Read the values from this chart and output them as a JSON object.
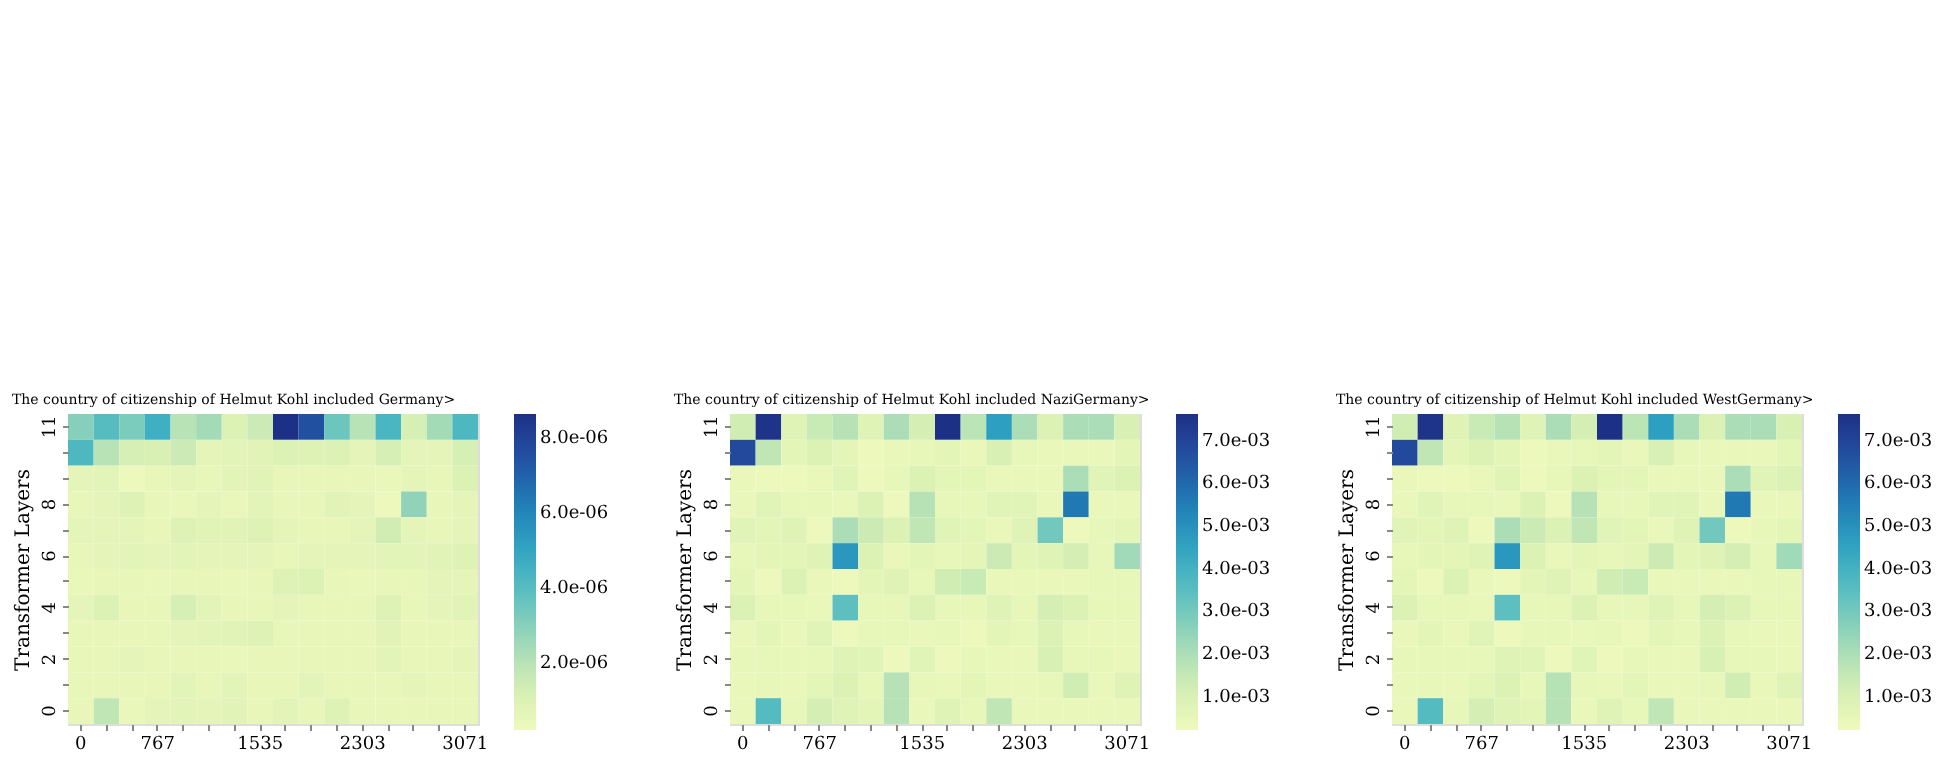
{
  "chart_data": [
    {
      "type": "heatmap",
      "title": "The country of citizenship of Helmut Kohl included Germany>",
      "ylabel": "Transformer Layers",
      "categories": [
        "0",
        null,
        null,
        "767",
        null,
        null,
        null,
        "1535",
        null,
        null,
        null,
        "2303",
        null,
        null,
        null,
        "3071"
      ],
      "y_categories": [
        "11",
        null,
        null,
        "8",
        null,
        "6",
        null,
        "4",
        null,
        "2",
        null,
        "0"
      ],
      "cells": [
        [
          3e-06,
          4e-06,
          3.2e-06,
          4.6e-06,
          2e-06,
          2.4e-06,
          1e-06,
          1.5e-06,
          8.6e-06,
          7.5e-06,
          3.5e-06,
          2e-06,
          4.3e-06,
          1.2e-06,
          2.4e-06,
          4.2e-06
        ],
        [
          4.2e-06,
          2e-06,
          1.2e-06,
          1.1e-06,
          1.5e-06,
          6e-07,
          7e-07,
          8e-07,
          1e-06,
          9e-07,
          1e-06,
          6e-07,
          1.2e-06,
          6e-07,
          6e-07,
          1.2e-06
        ],
        [
          6e-07,
          7e-07,
          3e-07,
          5e-07,
          6e-07,
          5e-07,
          7e-07,
          8e-07,
          5e-07,
          5e-07,
          5e-07,
          5e-07,
          4e-07,
          6e-07,
          5e-07,
          1e-06
        ],
        [
          5e-07,
          6e-07,
          9e-07,
          5e-07,
          4e-07,
          6e-07,
          4e-07,
          7e-07,
          5e-07,
          5e-07,
          8e-07,
          6e-07,
          3e-07,
          2.8e-06,
          5e-07,
          6e-07
        ],
        [
          6e-07,
          6e-07,
          6e-07,
          5e-07,
          9e-07,
          8e-07,
          8e-07,
          9e-07,
          6e-07,
          5e-07,
          5e-07,
          6e-07,
          1.3e-06,
          6e-07,
          5e-07,
          6e-07
        ],
        [
          5e-07,
          6e-07,
          7e-07,
          6e-07,
          7e-07,
          6e-07,
          6e-07,
          6e-07,
          5e-07,
          6e-07,
          6e-07,
          6e-07,
          7e-07,
          7e-07,
          8e-07,
          9e-07
        ],
        [
          4e-07,
          5e-07,
          5e-07,
          4e-07,
          5e-07,
          5e-07,
          4e-07,
          5e-07,
          9e-07,
          1e-06,
          5e-07,
          4e-07,
          5e-07,
          5e-07,
          6e-07,
          6e-07
        ],
        [
          6e-07,
          1e-06,
          5e-07,
          5e-07,
          1.2e-06,
          7e-07,
          5e-07,
          5e-07,
          6e-07,
          5e-07,
          5e-07,
          5e-07,
          9e-07,
          5e-07,
          6e-07,
          8e-07
        ],
        [
          5e-07,
          5e-07,
          5e-07,
          5e-07,
          6e-07,
          7e-07,
          8e-07,
          9e-07,
          5e-07,
          5e-07,
          5e-07,
          5e-07,
          8e-07,
          5e-07,
          5e-07,
          5e-07
        ],
        [
          5e-07,
          5e-07,
          6e-07,
          5e-07,
          5e-07,
          5e-07,
          4e-07,
          5e-07,
          5e-07,
          5e-07,
          5e-07,
          5e-07,
          7e-07,
          5e-07,
          5e-07,
          6e-07
        ],
        [
          5e-07,
          5e-07,
          5e-07,
          5e-07,
          7e-07,
          5e-07,
          7e-07,
          5e-07,
          5e-07,
          7e-07,
          5e-07,
          5e-07,
          5e-07,
          6e-07,
          5e-07,
          5e-07
        ],
        [
          5e-07,
          1.8e-06,
          4e-07,
          6e-07,
          7e-07,
          6e-07,
          8e-07,
          5e-07,
          7e-07,
          5e-07,
          9e-07,
          5e-07,
          5e-07,
          5e-07,
          5e-07,
          5e-07
        ]
      ],
      "clim": [
        2e-07,
        8.6e-06
      ],
      "cticks": [
        {
          "value": 2e-06,
          "label": "2.0e-06"
        },
        {
          "value": 4e-06,
          "label": "4.0e-06"
        },
        {
          "value": 6e-06,
          "label": "6.0e-06"
        },
        {
          "value": 8e-06,
          "label": "8.0e-06"
        }
      ]
    },
    {
      "type": "heatmap",
      "title": "The country of citizenship of Helmut Kohl included NaziGermany>",
      "ylabel": "Transformer Layers",
      "categories": [
        "0",
        null,
        null,
        "767",
        null,
        null,
        null,
        "1535",
        null,
        null,
        null,
        "2303",
        null,
        null,
        null,
        "3071"
      ],
      "y_categories": [
        "11",
        null,
        null,
        "8",
        null,
        "6",
        null,
        "4",
        null,
        "2",
        null,
        "0"
      ],
      "cells": [
        [
          0.0012,
          0.0075,
          0.0008,
          0.0014,
          0.0018,
          0.0008,
          0.002,
          0.0011,
          0.0076,
          0.0017,
          0.0046,
          0.002,
          0.0009,
          0.002,
          0.002,
          0.001
        ],
        [
          0.0068,
          0.0016,
          0.0006,
          0.0009,
          0.0006,
          0.0003,
          0.0004,
          0.0005,
          0.0006,
          0.0004,
          0.001,
          0.0005,
          0.0004,
          0.0004,
          0.0004,
          0.0006
        ],
        [
          0.0004,
          0.0003,
          0.0003,
          0.0004,
          0.0007,
          0.0003,
          0.0005,
          0.0009,
          0.0006,
          0.0006,
          0.0004,
          0.0004,
          0.0004,
          0.002,
          0.0007,
          0.0009
        ],
        [
          0.0004,
          0.0007,
          0.0005,
          0.0005,
          0.0004,
          0.0009,
          0.0003,
          0.0018,
          0.0005,
          0.0005,
          0.0007,
          0.0007,
          0.0004,
          0.0056,
          0.0004,
          0.0004
        ],
        [
          0.0007,
          0.0006,
          0.0008,
          0.0003,
          0.002,
          0.0013,
          0.0009,
          0.0016,
          0.0007,
          0.0006,
          0.0004,
          0.0008,
          0.003,
          0.0003,
          0.0005,
          0.0006
        ],
        [
          0.0005,
          0.0006,
          0.0006,
          0.0008,
          0.0048,
          0.0009,
          0.0004,
          0.0006,
          0.0005,
          0.0006,
          0.0013,
          0.0006,
          0.0008,
          0.0011,
          0.0005,
          0.0022
        ],
        [
          0.0006,
          0.0003,
          0.0009,
          0.0004,
          0.0003,
          0.0006,
          0.0008,
          0.0005,
          0.0012,
          0.0014,
          0.0004,
          0.0004,
          0.0004,
          0.0004,
          0.0005,
          0.0005
        ],
        [
          0.0009,
          0.0005,
          0.0005,
          0.0004,
          0.0034,
          0.0005,
          0.0005,
          0.0009,
          0.0005,
          0.0005,
          0.0008,
          0.0005,
          0.0011,
          0.0009,
          0.0005,
          0.0005
        ],
        [
          0.0004,
          0.0006,
          0.0004,
          0.0007,
          0.0003,
          0.0005,
          0.0005,
          0.0004,
          0.0005,
          0.0003,
          0.0006,
          0.0005,
          0.0009,
          0.0005,
          0.0004,
          0.0004
        ],
        [
          0.0005,
          0.0005,
          0.0005,
          0.0005,
          0.0008,
          0.0007,
          0.0003,
          0.0007,
          0.0003,
          0.0005,
          0.0004,
          0.0004,
          0.001,
          0.0005,
          0.0005,
          0.0004
        ],
        [
          0.0004,
          0.0005,
          0.0004,
          0.0006,
          0.0009,
          0.0005,
          0.0018,
          0.0005,
          0.0004,
          0.0006,
          0.0004,
          0.0004,
          0.0005,
          0.0012,
          0.0004,
          0.0008
        ],
        [
          0.0004,
          0.0036,
          0.0005,
          0.0011,
          0.0008,
          0.0006,
          0.0018,
          0.0004,
          0.0008,
          0.0005,
          0.0016,
          0.0004,
          0.0004,
          0.0004,
          0.0004,
          0.0004
        ]
      ],
      "clim": [
        0.0002,
        0.0076
      ],
      "cticks": [
        {
          "value": 0.001,
          "label": "1.0e-03"
        },
        {
          "value": 0.002,
          "label": "2.0e-03"
        },
        {
          "value": 0.003,
          "label": "3.0e-03"
        },
        {
          "value": 0.004,
          "label": "4.0e-03"
        },
        {
          "value": 0.005,
          "label": "5.0e-03"
        },
        {
          "value": 0.006,
          "label": "6.0e-03"
        },
        {
          "value": 0.007,
          "label": "7.0e-03"
        }
      ]
    },
    {
      "type": "heatmap",
      "title": "The country of citizenship of Helmut Kohl included WestGermany>",
      "ylabel": "Transformer Layers",
      "categories": [
        "0",
        null,
        null,
        "767",
        null,
        null,
        null,
        "1535",
        null,
        null,
        null,
        "2303",
        null,
        null,
        null,
        "3071"
      ],
      "y_categories": [
        "11",
        null,
        null,
        "8",
        null,
        "6",
        null,
        "4",
        null,
        "2",
        null,
        "0"
      ],
      "cells": [
        [
          0.0012,
          0.0075,
          0.0008,
          0.0014,
          0.0018,
          0.0008,
          0.002,
          0.0011,
          0.0076,
          0.0017,
          0.0046,
          0.002,
          0.0009,
          0.002,
          0.002,
          0.001
        ],
        [
          0.0068,
          0.0016,
          0.0006,
          0.0009,
          0.0006,
          0.0003,
          0.0004,
          0.0005,
          0.0006,
          0.0004,
          0.001,
          0.0005,
          0.0004,
          0.0004,
          0.0004,
          0.0006
        ],
        [
          0.0004,
          0.0003,
          0.0003,
          0.0004,
          0.0007,
          0.0003,
          0.0005,
          0.0009,
          0.0006,
          0.0006,
          0.0004,
          0.0004,
          0.0004,
          0.002,
          0.0007,
          0.0009
        ],
        [
          0.0004,
          0.0007,
          0.0005,
          0.0005,
          0.0004,
          0.0009,
          0.0003,
          0.0018,
          0.0005,
          0.0005,
          0.0007,
          0.0007,
          0.0004,
          0.0056,
          0.0004,
          0.0004
        ],
        [
          0.0007,
          0.0006,
          0.0008,
          0.0003,
          0.002,
          0.0013,
          0.0009,
          0.0016,
          0.0007,
          0.0006,
          0.0004,
          0.0008,
          0.003,
          0.0003,
          0.0005,
          0.0006
        ],
        [
          0.0005,
          0.0006,
          0.0006,
          0.0008,
          0.0048,
          0.0009,
          0.0004,
          0.0006,
          0.0005,
          0.0006,
          0.0013,
          0.0006,
          0.0008,
          0.0011,
          0.0005,
          0.0022
        ],
        [
          0.0006,
          0.0003,
          0.0009,
          0.0004,
          0.0003,
          0.0006,
          0.0008,
          0.0005,
          0.0012,
          0.0014,
          0.0004,
          0.0004,
          0.0004,
          0.0004,
          0.0005,
          0.0005
        ],
        [
          0.0009,
          0.0005,
          0.0005,
          0.0004,
          0.0034,
          0.0005,
          0.0005,
          0.0009,
          0.0005,
          0.0005,
          0.0008,
          0.0005,
          0.0011,
          0.0009,
          0.0005,
          0.0005
        ],
        [
          0.0004,
          0.0006,
          0.0004,
          0.0007,
          0.0003,
          0.0005,
          0.0005,
          0.0004,
          0.0005,
          0.0003,
          0.0006,
          0.0005,
          0.0009,
          0.0005,
          0.0004,
          0.0004
        ],
        [
          0.0005,
          0.0005,
          0.0005,
          0.0005,
          0.0008,
          0.0007,
          0.0003,
          0.0007,
          0.0003,
          0.0005,
          0.0004,
          0.0004,
          0.001,
          0.0005,
          0.0005,
          0.0004
        ],
        [
          0.0004,
          0.0005,
          0.0004,
          0.0006,
          0.0009,
          0.0005,
          0.0018,
          0.0005,
          0.0004,
          0.0006,
          0.0004,
          0.0004,
          0.0005,
          0.0012,
          0.0004,
          0.0008
        ],
        [
          0.0004,
          0.0036,
          0.0005,
          0.0011,
          0.0008,
          0.0006,
          0.0018,
          0.0004,
          0.0008,
          0.0005,
          0.0016,
          0.0004,
          0.0004,
          0.0004,
          0.0004,
          0.0004
        ]
      ],
      "clim": [
        0.0002,
        0.0076
      ],
      "cticks": [
        {
          "value": 0.001,
          "label": "1.0e-03"
        },
        {
          "value": 0.002,
          "label": "2.0e-03"
        },
        {
          "value": 0.003,
          "label": "3.0e-03"
        },
        {
          "value": 0.004,
          "label": "4.0e-03"
        },
        {
          "value": 0.005,
          "label": "5.0e-03"
        },
        {
          "value": 0.006,
          "label": "6.0e-03"
        },
        {
          "value": 0.007,
          "label": "7.0e-03"
        }
      ]
    }
  ]
}
